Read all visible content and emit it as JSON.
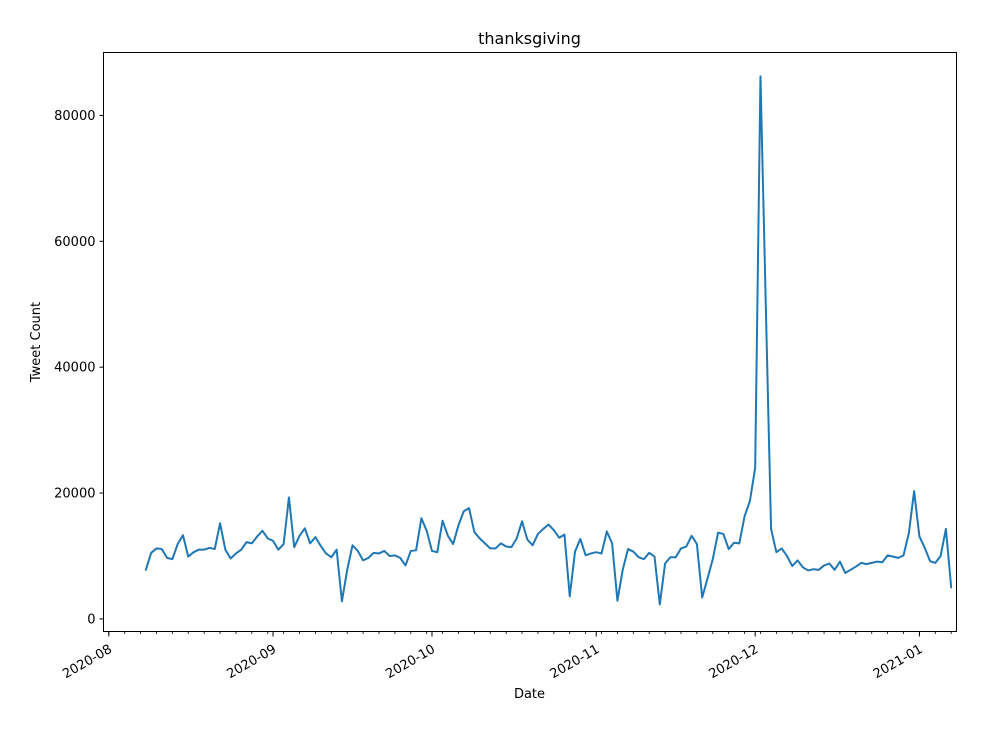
{
  "chart_data": {
    "type": "line",
    "title": "thanksgiving",
    "xlabel": "Date",
    "ylabel": "Tweet Count",
    "x_ticks": [
      "2020-08",
      "2020-09",
      "2020-10",
      "2020-11",
      "2020-12",
      "2021-01"
    ],
    "y_ticks": [
      0,
      20000,
      40000,
      60000,
      80000
    ],
    "xlim": [
      "2020-07-31",
      "2021-01-08"
    ],
    "ylim": [
      -2000,
      90000
    ],
    "grid": false,
    "series": [
      {
        "color": "#1f77b4",
        "points": [
          [
            "2020-08-08",
            7800
          ],
          [
            "2020-08-09",
            10500
          ],
          [
            "2020-08-10",
            11200
          ],
          [
            "2020-08-11",
            11100
          ],
          [
            "2020-08-12",
            9700
          ],
          [
            "2020-08-13",
            9500
          ],
          [
            "2020-08-14",
            11900
          ],
          [
            "2020-08-15",
            13300
          ],
          [
            "2020-08-16",
            9900
          ],
          [
            "2020-08-17",
            10600
          ],
          [
            "2020-08-18",
            11000
          ],
          [
            "2020-08-19",
            11000
          ],
          [
            "2020-08-20",
            11300
          ],
          [
            "2020-08-21",
            11100
          ],
          [
            "2020-08-22",
            15200
          ],
          [
            "2020-08-23",
            11000
          ],
          [
            "2020-08-24",
            9600
          ],
          [
            "2020-08-25",
            10400
          ],
          [
            "2020-08-26",
            11000
          ],
          [
            "2020-08-27",
            12200
          ],
          [
            "2020-08-28",
            12000
          ],
          [
            "2020-08-29",
            13100
          ],
          [
            "2020-08-30",
            14000
          ],
          [
            "2020-08-31",
            12800
          ],
          [
            "2020-09-01",
            12400
          ],
          [
            "2020-09-02",
            11000
          ],
          [
            "2020-09-03",
            11900
          ],
          [
            "2020-09-04",
            19300
          ],
          [
            "2020-09-05",
            11400
          ],
          [
            "2020-09-06",
            13200
          ],
          [
            "2020-09-07",
            14400
          ],
          [
            "2020-09-08",
            12000
          ],
          [
            "2020-09-09",
            13000
          ],
          [
            "2020-09-10",
            11600
          ],
          [
            "2020-09-11",
            10400
          ],
          [
            "2020-09-12",
            9800
          ],
          [
            "2020-09-13",
            11000
          ],
          [
            "2020-09-14",
            2800
          ],
          [
            "2020-09-15",
            7800
          ],
          [
            "2020-09-16",
            11700
          ],
          [
            "2020-09-17",
            10800
          ],
          [
            "2020-09-18",
            9300
          ],
          [
            "2020-09-19",
            9700
          ],
          [
            "2020-09-20",
            10500
          ],
          [
            "2020-09-21",
            10400
          ],
          [
            "2020-09-22",
            10800
          ],
          [
            "2020-09-23",
            10000
          ],
          [
            "2020-09-24",
            10100
          ],
          [
            "2020-09-25",
            9700
          ],
          [
            "2020-09-26",
            8500
          ],
          [
            "2020-09-27",
            10800
          ],
          [
            "2020-09-28",
            10900
          ],
          [
            "2020-09-29",
            16000
          ],
          [
            "2020-09-30",
            14000
          ],
          [
            "2020-10-01",
            10800
          ],
          [
            "2020-10-02",
            10600
          ],
          [
            "2020-10-03",
            15600
          ],
          [
            "2020-10-04",
            13200
          ],
          [
            "2020-10-05",
            11900
          ],
          [
            "2020-10-06",
            14900
          ],
          [
            "2020-10-07",
            17100
          ],
          [
            "2020-10-08",
            17600
          ],
          [
            "2020-10-09",
            13800
          ],
          [
            "2020-10-10",
            12800
          ],
          [
            "2020-10-11",
            12000
          ],
          [
            "2020-10-12",
            11200
          ],
          [
            "2020-10-13",
            11200
          ],
          [
            "2020-10-14",
            12000
          ],
          [
            "2020-10-15",
            11500
          ],
          [
            "2020-10-16",
            11400
          ],
          [
            "2020-10-17",
            12800
          ],
          [
            "2020-10-18",
            15500
          ],
          [
            "2020-10-19",
            12600
          ],
          [
            "2020-10-20",
            11700
          ],
          [
            "2020-10-21",
            13500
          ],
          [
            "2020-10-22",
            14300
          ],
          [
            "2020-10-23",
            15000
          ],
          [
            "2020-10-24",
            14100
          ],
          [
            "2020-10-25",
            12900
          ],
          [
            "2020-10-26",
            13400
          ],
          [
            "2020-10-27",
            3600
          ],
          [
            "2020-10-28",
            10700
          ],
          [
            "2020-10-29",
            12700
          ],
          [
            "2020-10-30",
            10100
          ],
          [
            "2020-10-31",
            10400
          ],
          [
            "2020-11-01",
            10600
          ],
          [
            "2020-11-02",
            10400
          ],
          [
            "2020-11-03",
            13900
          ],
          [
            "2020-11-04",
            12000
          ],
          [
            "2020-11-05",
            2900
          ],
          [
            "2020-11-06",
            7800
          ],
          [
            "2020-11-07",
            11100
          ],
          [
            "2020-11-08",
            10700
          ],
          [
            "2020-11-09",
            9800
          ],
          [
            "2020-11-10",
            9500
          ],
          [
            "2020-11-11",
            10500
          ],
          [
            "2020-11-12",
            9900
          ],
          [
            "2020-11-13",
            2300
          ],
          [
            "2020-11-14",
            8800
          ],
          [
            "2020-11-15",
            9800
          ],
          [
            "2020-11-16",
            9800
          ],
          [
            "2020-11-17",
            11200
          ],
          [
            "2020-11-18",
            11500
          ],
          [
            "2020-11-19",
            13200
          ],
          [
            "2020-11-20",
            11900
          ],
          [
            "2020-11-21",
            3400
          ],
          [
            "2020-11-22",
            6400
          ],
          [
            "2020-11-23",
            9500
          ],
          [
            "2020-11-24",
            13700
          ],
          [
            "2020-11-25",
            13500
          ],
          [
            "2020-11-26",
            11100
          ],
          [
            "2020-11-27",
            12100
          ],
          [
            "2020-11-28",
            12000
          ],
          [
            "2020-11-29",
            16300
          ],
          [
            "2020-11-30",
            18700
          ],
          [
            "2020-12-01",
            24000
          ],
          [
            "2020-12-02",
            86200
          ],
          [
            "2020-12-03",
            50000
          ],
          [
            "2020-12-04",
            14300
          ],
          [
            "2020-12-05",
            10600
          ],
          [
            "2020-12-06",
            11200
          ],
          [
            "2020-12-07",
            10000
          ],
          [
            "2020-12-08",
            8400
          ],
          [
            "2020-12-09",
            9300
          ],
          [
            "2020-12-10",
            8200
          ],
          [
            "2020-12-11",
            7700
          ],
          [
            "2020-12-12",
            7900
          ],
          [
            "2020-12-13",
            7800
          ],
          [
            "2020-12-14",
            8500
          ],
          [
            "2020-12-15",
            8800
          ],
          [
            "2020-12-16",
            7800
          ],
          [
            "2020-12-17",
            9100
          ],
          [
            "2020-12-18",
            7300
          ],
          [
            "2020-12-19",
            7800
          ],
          [
            "2020-12-20",
            8300
          ],
          [
            "2020-12-21",
            8900
          ],
          [
            "2020-12-22",
            8700
          ],
          [
            "2020-12-23",
            8900
          ],
          [
            "2020-12-24",
            9100
          ],
          [
            "2020-12-25",
            9000
          ],
          [
            "2020-12-26",
            10100
          ],
          [
            "2020-12-27",
            9900
          ],
          [
            "2020-12-28",
            9700
          ],
          [
            "2020-12-29",
            10100
          ],
          [
            "2020-12-30",
            13600
          ],
          [
            "2020-12-31",
            20300
          ],
          [
            "2021-01-01",
            13100
          ],
          [
            "2021-01-02",
            11300
          ],
          [
            "2021-01-03",
            9200
          ],
          [
            "2021-01-04",
            8900
          ],
          [
            "2021-01-05",
            10000
          ],
          [
            "2021-01-06",
            14300
          ],
          [
            "2021-01-07",
            5000
          ]
        ]
      }
    ]
  }
}
